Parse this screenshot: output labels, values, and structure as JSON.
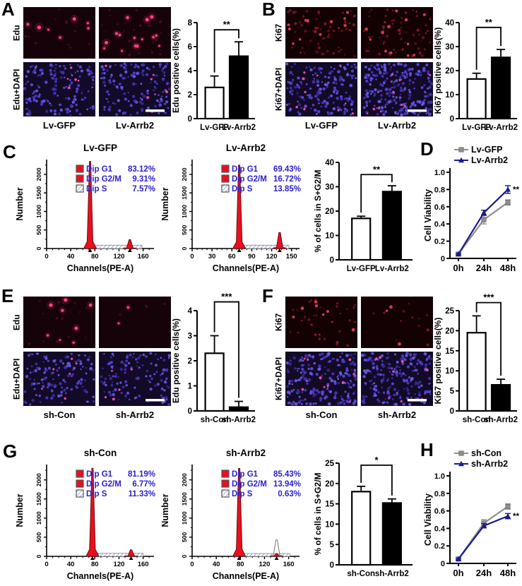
{
  "figure_title": "Arrb2 gain/loss-of-function proliferation figure",
  "colors": {
    "red": "#e8101e",
    "legend_blue": "#2a1fd0",
    "navy": "#1b1b8c",
    "gray": "#8f8f8f",
    "dapi_bg": "#130a28",
    "edu_bg": "#160309",
    "ki67_bg": "#140104",
    "white": "#ffffff",
    "black": "#000000"
  },
  "panels": {
    "A": {
      "letter": "A",
      "row_labels": [
        "Edu",
        "Edu+DAPI"
      ],
      "col_labels": [
        "Lv-GFP",
        "Lv-Arrb2"
      ],
      "cells": [
        [
          {
            "kind": "edu",
            "dots": 7,
            "seed": 11
          },
          {
            "kind": "edu",
            "dots": 15,
            "seed": 22
          }
        ],
        [
          {
            "kind": "dapi",
            "dots": 150,
            "red_dots": 5,
            "seed": 33
          },
          {
            "kind": "dapi",
            "dots": 140,
            "red_dots": 7,
            "seed": 44,
            "scalebar": true
          }
        ]
      ],
      "chart": {
        "type": "bar",
        "ylabel": "Edu positive cells(%)",
        "ymax": 8,
        "yticks": [
          0,
          2,
          4,
          6,
          8
        ],
        "categories": [
          "Lv-GFP",
          "Lv-Arrb2"
        ],
        "values": [
          2.6,
          5.2
        ],
        "errors": [
          0.95,
          1.2
        ],
        "sig": "**",
        "sig_y": 7.4
      }
    },
    "B": {
      "letter": "B",
      "row_labels": [
        "Ki67",
        "Ki67+DAPI"
      ],
      "col_labels": [
        "Lv-GFP",
        "Lv-Arrb2"
      ],
      "cells": [
        [
          {
            "kind": "ki67",
            "dots": 55,
            "seed": 55
          },
          {
            "kind": "ki67",
            "dots": 60,
            "seed": 66
          }
        ],
        [
          {
            "kind": "dapi",
            "dots": 175,
            "red_dots": 10,
            "seed": 77
          },
          {
            "kind": "dapi",
            "dots": 235,
            "red_dots": 12,
            "seed": 88,
            "scalebar": true
          }
        ]
      ],
      "chart": {
        "type": "bar",
        "ylabel": "Ki67 positive cells(%)",
        "ymax": 40,
        "yticks": [
          0,
          10,
          20,
          30,
          40
        ],
        "categories": [
          "Lv-GFP",
          "Lv-Arrb2"
        ],
        "values": [
          16.5,
          25.5
        ],
        "errors": [
          2.4,
          3.3
        ],
        "sig": "**",
        "sig_y": 38
      }
    },
    "C": {
      "letter": "C",
      "flows": [
        {
          "title": "Lv-GFP",
          "ylabel": "Number",
          "xlabel": "Channels(PE-A)",
          "yticks": [
            0,
            500,
            1000,
            1500,
            2000
          ],
          "ymax": 2400,
          "xticks": [
            0,
            40,
            80,
            120,
            160
          ],
          "xmax": 178,
          "g1_x": 72,
          "g1_h": 2350,
          "g2_x": 138,
          "g2_h": 240,
          "g2_outline": false,
          "s_from": 80,
          "s_to": 158,
          "s_h": 90,
          "legend": [
            {
              "label": "Dip G1",
              "value": "83.12%",
              "swatch": "red"
            },
            {
              "label": "Dip G2/M",
              "value": "9.31%",
              "swatch": "red"
            },
            {
              "label": "Dip S",
              "value": "7.57%",
              "swatch": "hatch"
            }
          ]
        },
        {
          "title": "Lv-Arrb2",
          "ylabel": "Number",
          "xlabel": "Channels(PE-A)",
          "yticks": [
            0,
            500,
            1000,
            1500,
            2000
          ],
          "ymax": 2400,
          "xticks": [
            0,
            30,
            60,
            90,
            120,
            150
          ],
          "xmax": 162,
          "g1_x": 71,
          "g1_h": 2250,
          "g2_x": 132,
          "g2_h": 430,
          "g2_outline": false,
          "s_from": 78,
          "s_to": 146,
          "s_h": 90,
          "legend": [
            {
              "label": "Dip G1",
              "value": "69.43%",
              "swatch": "red"
            },
            {
              "label": "Dip G2/M",
              "value": "16.72%",
              "swatch": "red"
            },
            {
              "label": "Dip S",
              "value": "13.85%",
              "swatch": "hatch"
            }
          ]
        }
      ],
      "chart": {
        "type": "bar",
        "ylabel": "% of cells in S+G2/M",
        "ymax": 40,
        "yticks": [
          0,
          10,
          20,
          30,
          40
        ],
        "categories": [
          "Lv-GFP",
          "Lv-Arrb2"
        ],
        "values": [
          17,
          28
        ],
        "errors": [
          0.9,
          2.4
        ],
        "sig": "**",
        "sig_y": 35
      }
    },
    "D": {
      "letter": "D",
      "chart": {
        "type": "line",
        "ylabel": "Cell Viability",
        "ymax": 1.0,
        "yticks": [
          "0",
          "0.2",
          "0.4",
          "0.6",
          "0.8",
          "1.0"
        ],
        "x_labels": [
          "0h",
          "24h",
          "48h"
        ],
        "series": [
          {
            "name": "Lv-GFP",
            "color": "#8f8f8f",
            "marker": "square",
            "values": [
              0.05,
              0.45,
              0.65
            ],
            "errors": [
              0.01,
              0.05,
              0.03
            ]
          },
          {
            "name": "Lv-Arrb2",
            "color": "#1b1b8c",
            "marker": "triangle",
            "values": [
              0.05,
              0.53,
              0.8
            ],
            "errors": [
              0.01,
              0.03,
              0.045
            ]
          }
        ],
        "sig": "**"
      }
    },
    "E": {
      "letter": "E",
      "row_labels": [
        "Edu",
        "Edu+DAPI"
      ],
      "col_labels": [
        "sh-Con",
        "sh-Arrb2"
      ],
      "cells": [
        [
          {
            "kind": "edu",
            "dots": 8,
            "seed": 101
          },
          {
            "kind": "edu",
            "dots": 2,
            "seed": 102
          }
        ],
        [
          {
            "kind": "dapi",
            "dots": 130,
            "red_dots": 6,
            "seed": 103
          },
          {
            "kind": "dapi",
            "dots": 120,
            "red_dots": 5,
            "seed": 104,
            "scalebar": true
          }
        ]
      ],
      "chart": {
        "type": "bar",
        "ylabel": "Edu positive cells(%)",
        "ymax": 4,
        "yticks": [
          0,
          1,
          2,
          3,
          4
        ],
        "categories": [
          "sh-Con",
          "sh-Arrb2"
        ],
        "values": [
          2.3,
          0.15
        ],
        "errors": [
          0.7,
          0.23
        ],
        "sig": "***",
        "sig_y": 4.35
      }
    },
    "F": {
      "letter": "F",
      "row_labels": [
        "Ki67",
        "Ki67+DAPI"
      ],
      "col_labels": [
        "sh-Con",
        "sh-Arrb2"
      ],
      "cells": [
        [
          {
            "kind": "ki67",
            "dots": 32,
            "seed": 105
          },
          {
            "kind": "ki67",
            "dots": 12,
            "seed": 106
          }
        ],
        [
          {
            "kind": "dapi",
            "dots": 210,
            "red_dots": 10,
            "seed": 107
          },
          {
            "kind": "dapi",
            "dots": 200,
            "red_dots": 8,
            "seed": 108,
            "scalebar": true
          }
        ]
      ],
      "chart": {
        "type": "bar",
        "ylabel": "Ki67 positive cells(%)",
        "ymax": 25,
        "yticks": [
          0,
          5,
          10,
          15,
          20,
          25
        ],
        "categories": [
          "sh-Con",
          "sh-Arrb2"
        ],
        "values": [
          19.5,
          6.5
        ],
        "errors": [
          4.2,
          1.4
        ],
        "sig": "***",
        "sig_y": 27
      }
    },
    "G": {
      "letter": "G",
      "flows": [
        {
          "title": "sh-Con",
          "ylabel": "Number",
          "xlabel": "Channels(PE-A)",
          "yticks": [
            0,
            500,
            1000,
            1500,
            2000
          ],
          "ymax": 2400,
          "xticks": [
            0,
            40,
            80,
            120,
            160
          ],
          "xmax": 178,
          "g1_x": 76,
          "g1_h": 2300,
          "g2_x": 140,
          "g2_h": 170,
          "g2_outline": false,
          "s_from": 84,
          "s_to": 160,
          "s_h": 80,
          "legend": [
            {
              "label": "Dip G1",
              "value": "81.19%",
              "swatch": "red"
            },
            {
              "label": "Dip G2/M",
              "value": "6.77%",
              "swatch": "red"
            },
            {
              "label": "Dip S",
              "value": "11.33%",
              "swatch": "hatch"
            }
          ]
        },
        {
          "title": "sh-Arrb2",
          "ylabel": "Number",
          "xlabel": "Channels(PE-A)",
          "yticks": [
            0,
            500,
            1000,
            1500,
            2000
          ],
          "ymax": 2400,
          "xticks": [
            0,
            40,
            80,
            120,
            160
          ],
          "xmax": 178,
          "g1_x": 78,
          "g1_h": 2300,
          "g2_x": 140,
          "g2_h": 430,
          "g2_outline": true,
          "s_from": 86,
          "s_to": 162,
          "s_h": 60,
          "legend": [
            {
              "label": "Dip G1",
              "value": "85.43%",
              "swatch": "red"
            },
            {
              "label": "Dip G2/M",
              "value": "13.94%",
              "swatch": "red"
            },
            {
              "label": "Dip S",
              "value": "0.63%",
              "swatch": "hatch"
            }
          ]
        }
      ],
      "chart": {
        "type": "bar",
        "ylabel": "% of cells in S+G2/M",
        "ymax": 25,
        "yticks": [
          0,
          5,
          10,
          15,
          20,
          25
        ],
        "categories": [
          "sh-Con",
          "sh-Arrb2"
        ],
        "values": [
          18,
          15.2
        ],
        "errors": [
          1.3,
          1.0
        ],
        "sig": "*",
        "sig_y": 24.5
      }
    },
    "H": {
      "letter": "H",
      "chart": {
        "type": "line",
        "ylabel": "Cell Viability",
        "ymax": 1.0,
        "yticks": [
          "0",
          "0.2",
          "0.4",
          "0.6",
          "0.8",
          "1.0"
        ],
        "x_labels": [
          "0h",
          "24h",
          "48h"
        ],
        "series": [
          {
            "name": "sh-Con",
            "color": "#8f8f8f",
            "marker": "square",
            "values": [
              0.05,
              0.46,
              0.65
            ],
            "errors": [
              0.01,
              0.04,
              0.03
            ]
          },
          {
            "name": "sh-Arrb2",
            "color": "#1b1b8c",
            "marker": "triangle",
            "values": [
              0.05,
              0.43,
              0.54
            ],
            "errors": [
              0.01,
              0.025,
              0.03
            ]
          }
        ],
        "sig": "**"
      }
    }
  },
  "chart_data": [
    {
      "panel": "A",
      "type": "bar",
      "title": "",
      "ylabel": "Edu positive cells(%)",
      "categories": [
        "Lv-GFP",
        "Lv-Arrb2"
      ],
      "values": [
        2.6,
        5.2
      ],
      "errors": [
        0.95,
        1.2
      ],
      "ylim": [
        0,
        8
      ],
      "significance": "**"
    },
    {
      "panel": "B",
      "type": "bar",
      "ylabel": "Ki67 positive cells(%)",
      "categories": [
        "Lv-GFP",
        "Lv-Arrb2"
      ],
      "values": [
        16.5,
        25.5
      ],
      "errors": [
        2.4,
        3.3
      ],
      "ylim": [
        0,
        40
      ],
      "significance": "**"
    },
    {
      "panel": "C",
      "type": "histogram",
      "title": "Lv-GFP",
      "xlabel": "Channels(PE-A)",
      "ylabel": "Number",
      "xlim": [
        0,
        178
      ],
      "ylim": [
        0,
        2400
      ],
      "legend": {
        "Dip G1": "83.12%",
        "Dip G2/M": "9.31%",
        "Dip S": "7.57%"
      }
    },
    {
      "panel": "C",
      "type": "histogram",
      "title": "Lv-Arrb2",
      "xlabel": "Channels(PE-A)",
      "ylabel": "Number",
      "xlim": [
        0,
        162
      ],
      "ylim": [
        0,
        2400
      ],
      "legend": {
        "Dip G1": "69.43%",
        "Dip G2/M": "16.72%",
        "Dip S": "13.85%"
      }
    },
    {
      "panel": "C",
      "type": "bar",
      "ylabel": "% of cells in S+G2/M",
      "categories": [
        "Lv-GFP",
        "Lv-Arrb2"
      ],
      "values": [
        17,
        28
      ],
      "errors": [
        0.9,
        2.4
      ],
      "ylim": [
        0,
        40
      ],
      "significance": "**"
    },
    {
      "panel": "D",
      "type": "line",
      "ylabel": "Cell Viability",
      "x": [
        "0h",
        "24h",
        "48h"
      ],
      "series": [
        {
          "name": "Lv-GFP",
          "values": [
            0.05,
            0.45,
            0.65
          ]
        },
        {
          "name": "Lv-Arrb2",
          "values": [
            0.05,
            0.53,
            0.8
          ]
        }
      ],
      "ylim": [
        0,
        1
      ],
      "significance": "**"
    },
    {
      "panel": "E",
      "type": "bar",
      "ylabel": "Edu positive cells(%)",
      "categories": [
        "sh-Con",
        "sh-Arrb2"
      ],
      "values": [
        2.3,
        0.15
      ],
      "errors": [
        0.7,
        0.23
      ],
      "ylim": [
        0,
        4
      ],
      "significance": "***"
    },
    {
      "panel": "F",
      "type": "bar",
      "ylabel": "Ki67 positive cells(%)",
      "categories": [
        "sh-Con",
        "sh-Arrb2"
      ],
      "values": [
        19.5,
        6.5
      ],
      "errors": [
        4.2,
        1.4
      ],
      "ylim": [
        0,
        25
      ],
      "significance": "***"
    },
    {
      "panel": "G",
      "type": "histogram",
      "title": "sh-Con",
      "xlabel": "Channels(PE-A)",
      "ylabel": "Number",
      "xlim": [
        0,
        178
      ],
      "ylim": [
        0,
        2400
      ],
      "legend": {
        "Dip G1": "81.19%",
        "Dip G2/M": "6.77%",
        "Dip S": "11.33%"
      }
    },
    {
      "panel": "G",
      "type": "histogram",
      "title": "sh-Arrb2",
      "xlabel": "Channels(PE-A)",
      "ylabel": "Number",
      "xlim": [
        0,
        178
      ],
      "ylim": [
        0,
        2400
      ],
      "legend": {
        "Dip G1": "85.43%",
        "Dip G2/M": "13.94%",
        "Dip S": "0.63%"
      }
    },
    {
      "panel": "G",
      "type": "bar",
      "ylabel": "% of cells in S+G2/M",
      "categories": [
        "sh-Con",
        "sh-Arrb2"
      ],
      "values": [
        18,
        15.2
      ],
      "errors": [
        1.3,
        1.0
      ],
      "ylim": [
        0,
        25
      ],
      "significance": "*"
    },
    {
      "panel": "H",
      "type": "line",
      "ylabel": "Cell Viability",
      "x": [
        "0h",
        "24h",
        "48h"
      ],
      "series": [
        {
          "name": "sh-Con",
          "values": [
            0.05,
            0.46,
            0.65
          ]
        },
        {
          "name": "sh-Arrb2",
          "values": [
            0.05,
            0.43,
            0.54
          ]
        }
      ],
      "ylim": [
        0,
        1
      ],
      "significance": "**"
    }
  ]
}
